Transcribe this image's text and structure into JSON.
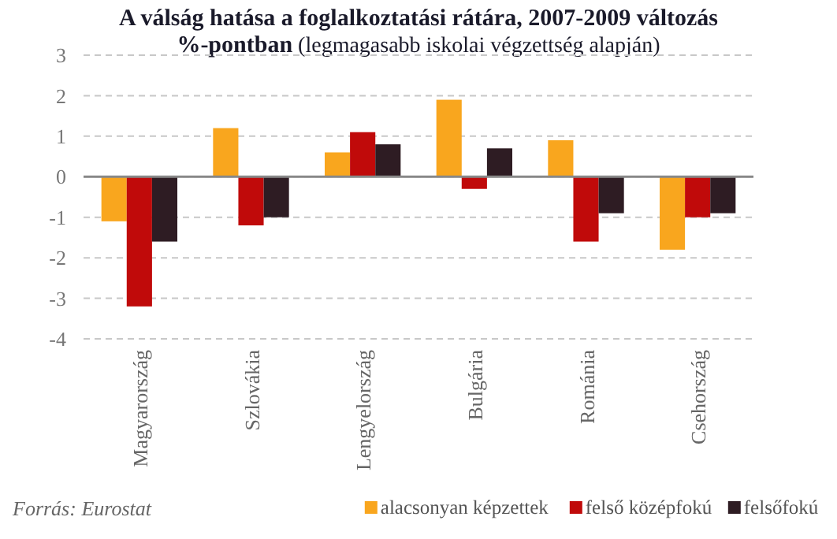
{
  "chart_data": {
    "type": "bar",
    "title": "A válság hatása a foglalkoztatási rátára, 2007-2009 változás %-pontban",
    "subtitle": "(legmagasabb iskolai végzettség alapján)",
    "categories": [
      "Magyarország",
      "Szlovákia",
      "Lengyelország",
      "Bulgária",
      "Románia",
      "Csehország"
    ],
    "series": [
      {
        "name": "alacsonyan képzettek",
        "color": "#f9a61e",
        "values": [
          -1.1,
          1.2,
          0.6,
          1.9,
          0.9,
          -1.8
        ]
      },
      {
        "name": "felső középfokú",
        "color": "#c00a0a",
        "values": [
          -3.2,
          -1.2,
          1.1,
          -0.3,
          -1.6,
          -1.0
        ]
      },
      {
        "name": "felsőfokú",
        "color": "#2e1c23",
        "values": [
          -1.6,
          -1.0,
          0.8,
          0.7,
          -0.9,
          -0.9
        ]
      }
    ],
    "ylim": [
      -4,
      3
    ],
    "yticks": [
      -4,
      -3,
      -2,
      -1,
      0,
      1,
      2,
      3
    ],
    "grid": "y",
    "legend": "bottom right",
    "annotations": [
      "Forrás: Eurostat"
    ]
  }
}
